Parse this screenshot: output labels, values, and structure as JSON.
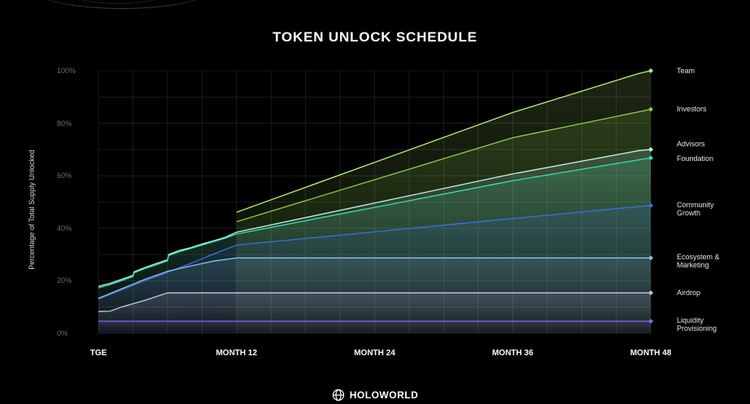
{
  "brand": {
    "name": "HOLOWORLD",
    "logo_icon": "holoworld-logo-icon"
  },
  "colors": {
    "background": "#000000",
    "team": "#b6f27a",
    "investors": "#8fcf4a",
    "advisors": "#bff5ee",
    "foundation": "#34e0b0",
    "community_growth": "#3a6fe0",
    "ecosystem_marketing": "#8cc2ec",
    "airdrop": "#c9c4ee",
    "liquidity_provisioning": "#8a67ee"
  },
  "chart_data": {
    "type": "area",
    "title": "TOKEN UNLOCK SCHEDULE",
    "ylabel": "Percentage of Total Supply Unlocked",
    "xlabel": "",
    "ylim": [
      0,
      100
    ],
    "xlim": [
      0,
      48
    ],
    "yticks": [
      "0%",
      "20%",
      "40%",
      "60%",
      "80%",
      "100%"
    ],
    "xticks": [
      {
        "x": 0,
        "label": "TGE"
      },
      {
        "x": 12,
        "label": "MONTH 12"
      },
      {
        "x": 24,
        "label": "MONTH 24"
      },
      {
        "x": 36,
        "label": "MONTH 36"
      },
      {
        "x": 48,
        "label": "MONTH 48"
      }
    ],
    "grid": true,
    "legend_position": "right",
    "series": [
      {
        "name": "Team",
        "color": "#b6f27a",
        "marker": "diamond",
        "points": [
          [
            12,
            46.1
          ],
          [
            36,
            84.1
          ],
          [
            47,
            99
          ],
          [
            48,
            100
          ]
        ]
      },
      {
        "name": "Investors",
        "color": "#8fcf4a",
        "marker": "diamond",
        "points": [
          [
            12,
            42.5
          ],
          [
            36,
            74.5
          ],
          [
            48,
            85.3
          ]
        ]
      },
      {
        "name": "Advisors",
        "color": "#bff5ee",
        "marker": "diamond",
        "points": [
          [
            0,
            17.9
          ],
          [
            1,
            19
          ],
          [
            2,
            20.5
          ],
          [
            3,
            22
          ],
          [
            3.1,
            23.4
          ],
          [
            4,
            25
          ],
          [
            5,
            26.5
          ],
          [
            6,
            28
          ],
          [
            6.1,
            30
          ],
          [
            7,
            31.5
          ],
          [
            8,
            32.6
          ],
          [
            9,
            34
          ],
          [
            10,
            35.2
          ],
          [
            11,
            36.5
          ],
          [
            12,
            38.5
          ],
          [
            36,
            60.7
          ],
          [
            47,
            69.6
          ],
          [
            48,
            70
          ]
        ]
      },
      {
        "name": "Foundation",
        "color": "#34e0b0",
        "marker": "diamond",
        "points": [
          [
            0,
            17.3
          ],
          [
            1,
            18.5
          ],
          [
            2,
            20
          ],
          [
            3,
            21.6
          ],
          [
            3.1,
            23
          ],
          [
            4,
            24.6
          ],
          [
            5,
            26
          ],
          [
            6,
            27.6
          ],
          [
            6.1,
            29.6
          ],
          [
            7,
            31
          ],
          [
            8,
            32.3
          ],
          [
            9,
            33.6
          ],
          [
            10,
            34.9
          ],
          [
            11,
            36.2
          ],
          [
            12,
            37.8
          ],
          [
            36,
            58.1
          ],
          [
            48,
            66.8
          ]
        ]
      },
      {
        "name": "Community\nGrowth",
        "color": "#3a6fe0",
        "marker": "diamond",
        "points": [
          [
            0,
            13.1
          ],
          [
            2,
            16.5
          ],
          [
            4,
            20
          ],
          [
            6,
            23.2
          ],
          [
            8,
            26.6
          ],
          [
            10,
            30.2
          ],
          [
            12,
            33.6
          ],
          [
            36,
            43.7
          ],
          [
            48,
            48.7
          ]
        ]
      },
      {
        "name": "Ecosystem &\nMarketing",
        "color": "#8cc2ec",
        "marker": "diamond",
        "points": [
          [
            0,
            13.3
          ],
          [
            2,
            16.9
          ],
          [
            4,
            20.5
          ],
          [
            6,
            23.6
          ],
          [
            8,
            25.6
          ],
          [
            10,
            27.5
          ],
          [
            12,
            28.7
          ],
          [
            48,
            28.7
          ]
        ]
      },
      {
        "name": "Airdrop",
        "color": "#c9c4ee",
        "marker": "diamond",
        "points": [
          [
            0,
            8.3
          ],
          [
            1,
            8.4
          ],
          [
            2,
            10
          ],
          [
            4,
            12.5
          ],
          [
            6,
            15.4
          ],
          [
            7,
            15.4
          ],
          [
            48,
            15.4
          ]
        ]
      },
      {
        "name": "Liquidity\nProvisioning",
        "color": "#8a67ee",
        "marker": "diamond",
        "points": [
          [
            0,
            4.6
          ],
          [
            48,
            4.6
          ]
        ]
      }
    ]
  }
}
